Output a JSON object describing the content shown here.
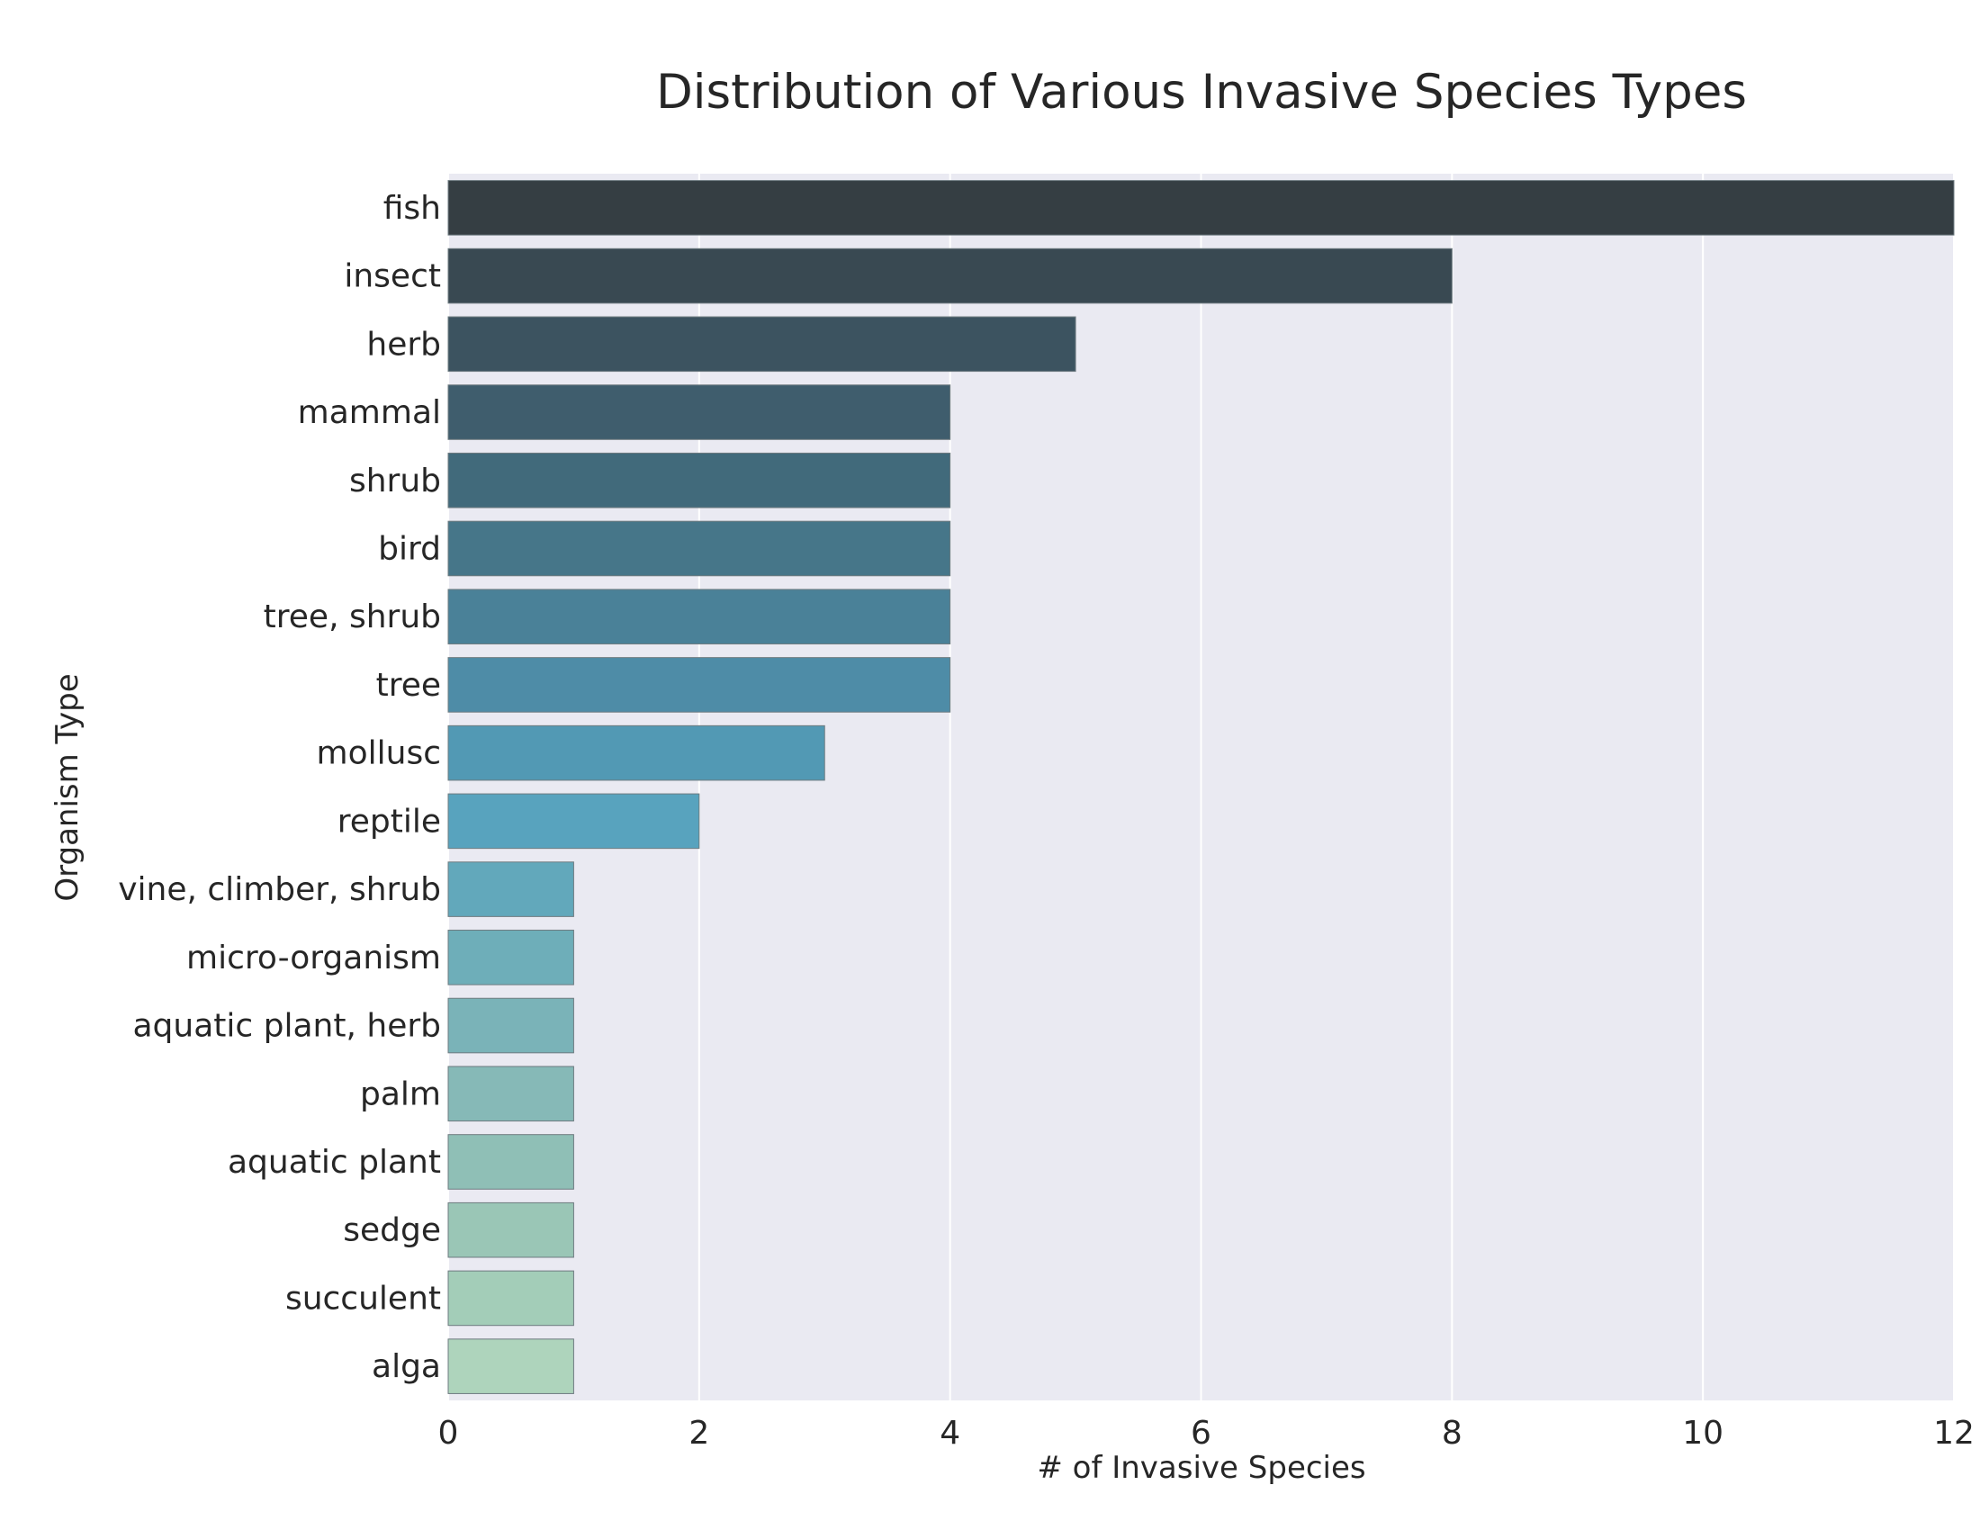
{
  "chart_data": {
    "type": "bar",
    "orientation": "horizontal",
    "title": "Distribution of Various Invasive Species Types",
    "xlabel": "# of Invasive Species",
    "ylabel": "Organism Type",
    "xlim": [
      0,
      12
    ],
    "xticks": [
      "0",
      "2",
      "4",
      "6",
      "8",
      "10",
      "12"
    ],
    "grid": true,
    "categories": [
      "fish",
      "insect",
      "herb",
      "mammal",
      "shrub",
      "bird",
      "tree, shrub",
      "tree",
      "mollusc",
      "reptile",
      "vine, climber, shrub",
      "micro-organism",
      "aquatic plant, herb",
      "palm",
      "aquatic plant",
      "sedge",
      "succulent",
      "alga"
    ],
    "values": [
      12,
      8,
      5,
      4,
      4,
      4,
      4,
      4,
      3,
      2,
      1,
      1,
      1,
      1,
      1,
      1,
      1,
      1
    ],
    "colors": [
      "#353e43",
      "#394952",
      "#3c5360",
      "#3f5d6d",
      "#416a7b",
      "#467689",
      "#4a8198",
      "#4e8ca7",
      "#5299b4",
      "#58a3be",
      "#62a8bb",
      "#6eaeb9",
      "#7ab3b8",
      "#86b9b7",
      "#8fbfb6",
      "#9ac6b6",
      "#a3cdb8",
      "#aed4bc"
    ],
    "background": "#eaeaf2"
  }
}
